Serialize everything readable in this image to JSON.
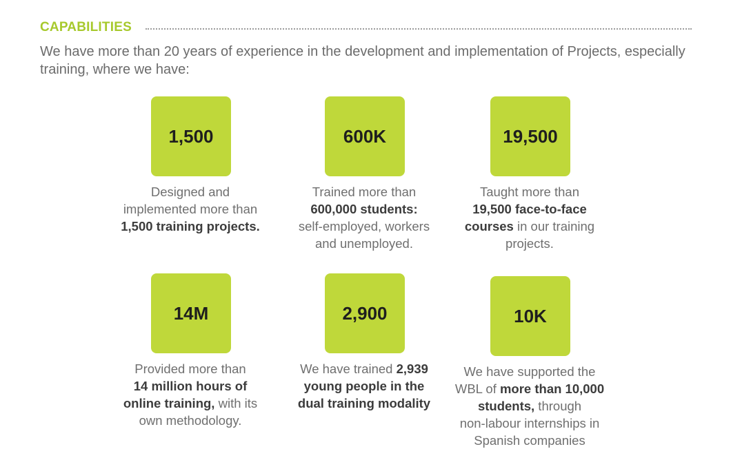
{
  "header": {
    "title": "CAPABILITIES",
    "intro": "We have more than 20 years of experience in the development and implementation of Projects, especially training, where we have:"
  },
  "stats": [
    {
      "value": "1,500",
      "lines": [
        [
          {
            "t": "Designed and"
          }
        ],
        [
          {
            "t": "implemented more than"
          }
        ],
        [
          {
            "t": "1,500 training projects.",
            "b": true
          }
        ]
      ]
    },
    {
      "value": "600K",
      "lines": [
        [
          {
            "t": "Trained more than"
          }
        ],
        [
          {
            "t": "600,000 students:",
            "b": true
          }
        ],
        [
          {
            "t": "self-employed, workers"
          }
        ],
        [
          {
            "t": "and unemployed."
          }
        ]
      ]
    },
    {
      "value": "19,500",
      "lines": [
        [
          {
            "t": "Taught more than"
          }
        ],
        [
          {
            "t": "19,500 face-to-face",
            "b": true
          }
        ],
        [
          {
            "t": "courses",
            "b": true
          },
          {
            "t": " in our training"
          }
        ],
        [
          {
            "t": "projects."
          }
        ]
      ]
    },
    {
      "value": "14M",
      "lines": [
        [
          {
            "t": "Provided more than"
          }
        ],
        [
          {
            "t": "14 million hours of",
            "b": true
          }
        ],
        [
          {
            "t": "online training,",
            "b": true
          },
          {
            "t": " with its"
          }
        ],
        [
          {
            "t": "own methodology."
          }
        ]
      ]
    },
    {
      "value": "2,900",
      "lines": [
        [
          {
            "t": "We have trained "
          },
          {
            "t": "2,939",
            "b": true
          }
        ],
        [
          {
            "t": "young people in the",
            "b": true
          }
        ],
        [
          {
            "t": "dual training modality",
            "b": true
          }
        ]
      ]
    },
    {
      "value": "10K",
      "lines": [
        [
          {
            "t": "We have supported the"
          }
        ],
        [
          {
            "t": "WBL of "
          },
          {
            "t": "more than 10,000",
            "b": true
          }
        ],
        [
          {
            "t": "students,",
            "b": true
          },
          {
            "t": " through"
          }
        ],
        [
          {
            "t": "non-labour internships in"
          }
        ],
        [
          {
            "t": "Spanish companies"
          }
        ]
      ]
    }
  ]
}
